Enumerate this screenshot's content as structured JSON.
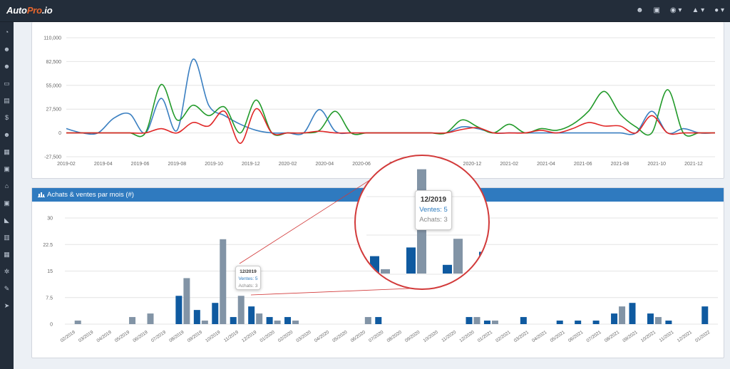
{
  "app": {
    "logo_main": "Auto",
    "logo_accent": "Pro",
    "logo_tail": ".io"
  },
  "topbar_icons": [
    "users-icon",
    "monitor-icon",
    "chat-icon",
    "bell-icon",
    "user-icon"
  ],
  "sidebar_icons": [
    "dashboard-icon",
    "users-icon",
    "users-icon",
    "car-icon",
    "card-icon",
    "dollar-icon",
    "users-icon",
    "calendar-icon",
    "money-icon",
    "bank-icon",
    "money-icon",
    "thumbs-up-icon",
    "bar-chart-icon",
    "table-icon",
    "gear-icon",
    "wrench-icon",
    "rocket-icon"
  ],
  "colors": {
    "topbar": "#232d3a",
    "panel_header": "#2f7abf",
    "blue": "#3a7fc1",
    "green": "#229a2a",
    "red": "#e02626",
    "bar_sales": "#0f5aa0",
    "bar_purchases": "#8294a6",
    "magnifier": "#d23a3a"
  },
  "line_chart": {
    "type": "line",
    "x_labels": [
      "2019-02",
      "2019-04",
      "2019-06",
      "2019-08",
      "2019-10",
      "2019-12",
      "2020-02",
      "2020-04",
      "2020-06",
      "2020-08",
      "2020-10",
      "2020-12",
      "2021-02",
      "2021-04",
      "2021-06",
      "2021-08",
      "2021-10",
      "2021-12"
    ],
    "y_ticks": [
      "110,000",
      "82,500",
      "55,000",
      "27,500",
      "0",
      "-27,500"
    ],
    "ylim": [
      -27500,
      110000
    ],
    "series": [
      {
        "color": "#3a7fc1",
        "values": [
          5000,
          0,
          0,
          17000,
          22000,
          0,
          40000,
          3000,
          85000,
          32000,
          20000,
          10000,
          3000,
          0,
          0,
          0,
          27000,
          2000,
          0,
          0,
          0,
          0,
          0,
          0,
          0,
          7000,
          5000,
          0,
          0,
          0,
          0,
          0,
          0,
          0,
          0,
          0,
          0,
          25000,
          0,
          5000,
          0,
          0
        ]
      },
      {
        "color": "#229a2a",
        "values": [
          0,
          0,
          0,
          0,
          0,
          0,
          56000,
          15000,
          32000,
          20000,
          30000,
          0,
          38000,
          0,
          0,
          0,
          3000,
          25000,
          0,
          0,
          0,
          0,
          0,
          0,
          0,
          15000,
          7000,
          0,
          10000,
          0,
          5000,
          3000,
          10000,
          25000,
          48000,
          22000,
          7000,
          0,
          50000,
          0,
          0,
          0
        ]
      },
      {
        "color": "#e02626",
        "values": [
          0,
          0,
          0,
          0,
          0,
          0,
          5000,
          0,
          12000,
          8000,
          25000,
          -12000,
          28000,
          0,
          0,
          0,
          2000,
          0,
          0,
          0,
          0,
          0,
          0,
          0,
          0,
          4000,
          6000,
          0,
          0,
          0,
          3000,
          0,
          5000,
          12000,
          8000,
          8000,
          0,
          20000,
          0,
          0,
          0,
          0
        ]
      }
    ]
  },
  "panel2": {
    "title": "Achats & ventes par mois (#)"
  },
  "chart_data": {
    "type": "bar",
    "title": "Achats & ventes par mois (#)",
    "categories": [
      "02/2019",
      "03/2019",
      "04/2019",
      "05/2019",
      "06/2019",
      "07/2019",
      "08/2019",
      "09/2019",
      "10/2019",
      "11/2019",
      "12/2019",
      "01/2020",
      "02/2020",
      "03/2020",
      "04/2020",
      "05/2020",
      "06/2020",
      "07/2020",
      "08/2020",
      "09/2020",
      "10/2020",
      "11/2020",
      "12/2020",
      "01/2021",
      "02/2021",
      "03/2021",
      "04/2021",
      "05/2021",
      "06/2021",
      "07/2021",
      "08/2021",
      "09/2021",
      "10/2021",
      "11/2021",
      "12/2021",
      "01/2022"
    ],
    "y_ticks": [
      "30",
      "22.5",
      "15",
      "7.5",
      "0"
    ],
    "ylim": [
      0,
      30
    ],
    "series": [
      {
        "name": "Ventes",
        "values": [
          0,
          0,
          0,
          0,
          0,
          0,
          8,
          4,
          6,
          2,
          5,
          2,
          2,
          0,
          0,
          0,
          0,
          2,
          0,
          0,
          0,
          0,
          2,
          1,
          0,
          2,
          0,
          1,
          1,
          1,
          3,
          6,
          3,
          1,
          0,
          5
        ]
      },
      {
        "name": "Achats",
        "values": [
          1,
          0,
          0,
          2,
          3,
          0,
          13,
          1,
          24,
          8,
          3,
          1,
          1,
          0,
          0,
          0,
          2,
          0,
          0,
          0,
          0,
          0,
          2,
          1,
          0,
          0,
          0,
          0,
          0,
          0,
          5,
          0,
          2,
          0,
          0,
          0
        ]
      }
    ],
    "tooltip": {
      "date": "12/2019",
      "sales": "Ventes: 5",
      "purchases": "Achats: 3"
    }
  }
}
